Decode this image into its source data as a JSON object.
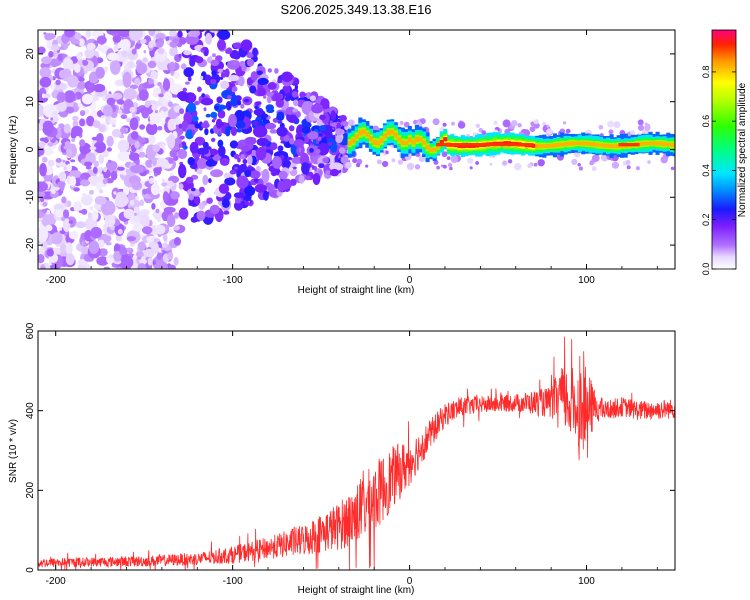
{
  "figure_title": "S206.2025.349.13.38.E16",
  "chart_data": [
    {
      "type": "heatmap",
      "title": "S206.2025.349.13.38.E16",
      "xlabel": "Height of straight line (km)",
      "ylabel": "Frequency (Hz)",
      "xlim": [
        -210,
        150
      ],
      "ylim": [
        -25,
        25
      ],
      "xticks": [
        -200,
        -100,
        0,
        100
      ],
      "xtick_labels": [
        "-200",
        "-100",
        "0",
        "100"
      ],
      "yticks": [
        -20,
        -10,
        0,
        10,
        20
      ],
      "ytick_labels": [
        "-20",
        "-10",
        "0",
        "10",
        "20"
      ],
      "colorbar": {
        "label": "Normalized spectral amplitude",
        "range": [
          0,
          0.97
        ],
        "ticks": [
          0.0,
          0.2,
          0.4,
          0.6,
          0.8
        ],
        "tick_labels": [
          "0.0",
          "0.2",
          "0.4",
          "0.6",
          "0.8"
        ],
        "colormap": "rainbow (white → violet → blue → cyan → green → yellow → red)"
      },
      "description_regions": [
        {
          "x_range": [
            -210,
            -130
          ],
          "freq_range": [
            -25,
            25
          ],
          "amplitude": [
            0.02,
            0.12
          ],
          "pattern": "scattered noise"
        },
        {
          "x_range": [
            -130,
            -35
          ],
          "freq_spread_decreasing": [
            25,
            5
          ],
          "amplitude": [
            0.05,
            0.25
          ],
          "pattern": "converging blobs"
        },
        {
          "x_range": [
            -35,
            150
          ],
          "center_freq": 1,
          "amplitude": [
            0.3,
            0.97
          ],
          "pattern": "narrow band line"
        }
      ]
    },
    {
      "type": "line",
      "title": "",
      "xlabel": "Height of straight line (km)",
      "ylabel": "SNR (10 * v/v)",
      "xlim": [
        -210,
        150
      ],
      "ylim": [
        0,
        600
      ],
      "xticks": [
        -200,
        -100,
        0,
        100
      ],
      "xtick_labels": [
        "-200",
        "-100",
        "0",
        "100"
      ],
      "yticks": [
        0,
        200,
        400,
        600
      ],
      "ytick_labels": [
        "0",
        "200",
        "400",
        "600"
      ],
      "line_color": "#ff2a2a",
      "envelope": {
        "x": [
          -210,
          -180,
          -150,
          -120,
          -100,
          -80,
          -60,
          -40,
          -30,
          -20,
          -10,
          0,
          10,
          20,
          30,
          40,
          60,
          80,
          85,
          90,
          95,
          100,
          105,
          110,
          120,
          130,
          150
        ],
        "mean": [
          18,
          20,
          22,
          28,
          38,
          55,
          75,
          110,
          140,
          180,
          230,
          270,
          330,
          390,
          410,
          415,
          420,
          420,
          440,
          420,
          410,
          400,
          410,
          400,
          410,
          400,
          405
        ],
        "noise": [
          12,
          12,
          14,
          16,
          22,
          28,
          40,
          60,
          80,
          90,
          80,
          60,
          40,
          30,
          25,
          22,
          22,
          40,
          70,
          90,
          100,
          110,
          40,
          25,
          25,
          25,
          25
        ]
      }
    }
  ]
}
